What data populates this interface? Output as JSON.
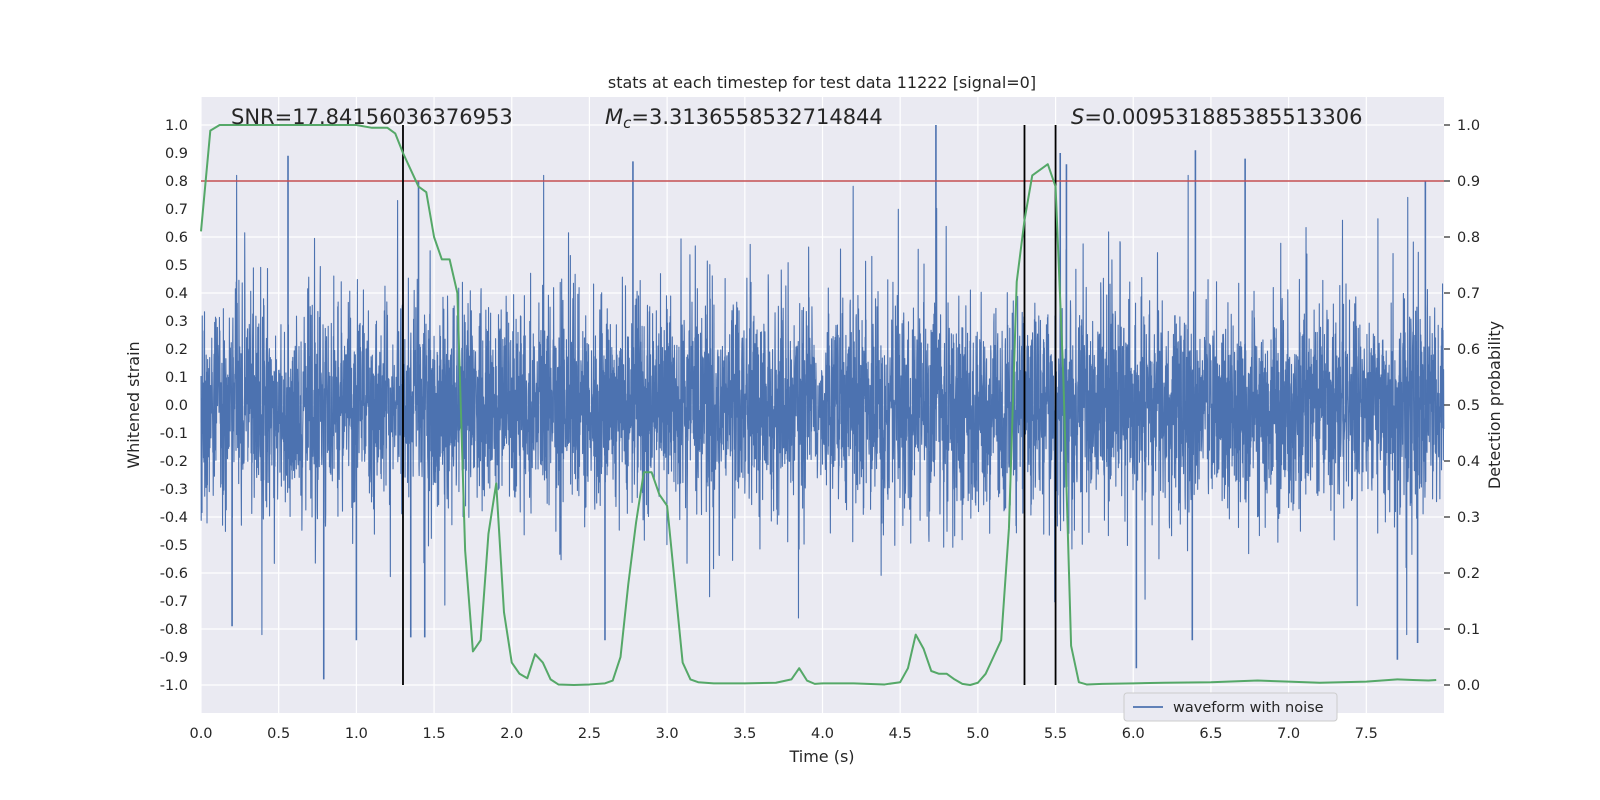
{
  "chart_data": {
    "type": "line",
    "title": "stats at each timestep for test data 11222 [signal=0]",
    "xlabel": "Time (s)",
    "ylabel": "Whitened strain",
    "y2label": "Detection probability",
    "xlim": [
      0.0,
      8.0
    ],
    "ylim": [
      -1.1,
      1.1
    ],
    "y2lim": [
      -0.05,
      1.05
    ],
    "xticks": [
      "0.0",
      "0.5",
      "1.0",
      "1.5",
      "2.0",
      "2.5",
      "3.0",
      "3.5",
      "4.0",
      "4.5",
      "5.0",
      "5.5",
      "6.0",
      "6.5",
      "7.0",
      "7.5"
    ],
    "yticks": [
      "1.0",
      "0.9",
      "0.8",
      "0.7",
      "0.6",
      "0.5",
      "0.4",
      "0.3",
      "0.2",
      "0.1",
      "0.0",
      "-0.1",
      "-0.2",
      "-0.3",
      "-0.4",
      "-0.5",
      "-0.6",
      "-0.7",
      "-0.8",
      "-0.9",
      "-1.0"
    ],
    "y2ticks": [
      "1.0",
      "0.9",
      "0.8",
      "0.7",
      "0.6",
      "0.5",
      "0.4",
      "0.3",
      "0.2",
      "0.1",
      "0.0"
    ],
    "annotations": {
      "snr": "SNR=17.84156036376953",
      "mc_sym": "M",
      "mc_sub": "c",
      "mc_val": "=3.3136558532714844",
      "s_sym": "S",
      "s_val": "=0.009531885385513306"
    },
    "threshold": {
      "y2": 0.9,
      "color": "#c44e52"
    },
    "vlines_x": [
      1.3,
      5.3,
      5.5
    ],
    "legend": {
      "label": "waveform with noise",
      "location": "lower-right"
    },
    "series": [
      {
        "name": "waveform with noise",
        "color": "#4c72b0",
        "description": "dense noisy whitened strain, typical band about ±0.4, spikes near ±0.9",
        "spikes_up": [
          [
            0.56,
            0.89
          ],
          [
            2.78,
            0.87
          ],
          [
            4.73,
            1.0
          ],
          [
            5.53,
            0.9
          ],
          [
            6.4,
            0.91
          ],
          [
            6.72,
            0.88
          ],
          [
            7.88,
            0.8
          ],
          [
            1.4,
            0.8
          ],
          [
            5.57,
            0.86
          ]
        ],
        "spikes_down": [
          [
            0.79,
            -0.98
          ],
          [
            1.0,
            -0.84
          ],
          [
            1.35,
            -0.83
          ],
          [
            1.44,
            -0.83
          ],
          [
            2.6,
            -0.84
          ],
          [
            6.02,
            -0.94
          ],
          [
            6.38,
            -0.84
          ],
          [
            7.7,
            -0.91
          ],
          [
            7.83,
            -0.85
          ],
          [
            0.2,
            -0.79
          ]
        ]
      },
      {
        "name": "Detection probability",
        "color": "#55a868",
        "axis": "y2",
        "x": [
          0.0,
          0.06,
          0.12,
          0.2,
          0.4,
          0.6,
          0.8,
          1.0,
          1.1,
          1.2,
          1.25,
          1.3,
          1.35,
          1.4,
          1.45,
          1.5,
          1.55,
          1.6,
          1.65,
          1.7,
          1.75,
          1.8,
          1.85,
          1.9,
          1.95,
          2.0,
          2.05,
          2.1,
          2.15,
          2.2,
          2.25,
          2.3,
          2.4,
          2.5,
          2.6,
          2.65,
          2.7,
          2.75,
          2.8,
          2.85,
          2.9,
          2.95,
          3.0,
          3.05,
          3.1,
          3.15,
          3.2,
          3.3,
          3.5,
          3.7,
          3.8,
          3.85,
          3.9,
          3.95,
          4.0,
          4.2,
          4.4,
          4.5,
          4.55,
          4.6,
          4.65,
          4.7,
          4.75,
          4.8,
          4.85,
          4.9,
          4.95,
          5.0,
          5.05,
          5.1,
          5.15,
          5.2,
          5.25,
          5.3,
          5.35,
          5.4,
          5.45,
          5.5,
          5.55,
          5.6,
          5.65,
          5.7,
          5.8,
          6.0,
          6.2,
          6.5,
          6.8,
          7.0,
          7.2,
          7.5,
          7.6,
          7.7,
          7.8,
          7.9,
          7.95
        ],
        "y": [
          0.81,
          0.99,
          1.0,
          1.0,
          1.0,
          1.0,
          1.0,
          1.0,
          0.995,
          0.995,
          0.985,
          0.95,
          0.92,
          0.89,
          0.88,
          0.8,
          0.76,
          0.76,
          0.7,
          0.24,
          0.06,
          0.08,
          0.27,
          0.36,
          0.13,
          0.04,
          0.02,
          0.012,
          0.055,
          0.04,
          0.01,
          0.001,
          0.0,
          0.001,
          0.003,
          0.008,
          0.05,
          0.18,
          0.29,
          0.38,
          0.38,
          0.34,
          0.32,
          0.18,
          0.04,
          0.01,
          0.005,
          0.003,
          0.003,
          0.004,
          0.01,
          0.03,
          0.008,
          0.002,
          0.003,
          0.003,
          0.001,
          0.005,
          0.03,
          0.09,
          0.065,
          0.025,
          0.02,
          0.02,
          0.01,
          0.002,
          0.0,
          0.004,
          0.02,
          0.05,
          0.08,
          0.28,
          0.72,
          0.83,
          0.91,
          0.92,
          0.93,
          0.89,
          0.55,
          0.07,
          0.005,
          0.001,
          0.002,
          0.003,
          0.004,
          0.005,
          0.008,
          0.006,
          0.004,
          0.006,
          0.008,
          0.01,
          0.009,
          0.008,
          0.009
        ]
      }
    ]
  }
}
